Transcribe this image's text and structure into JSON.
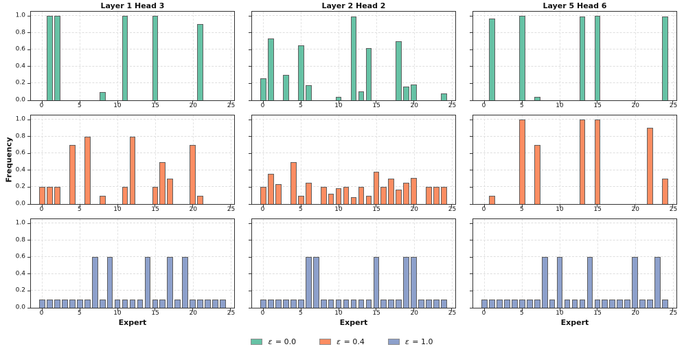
{
  "chart_data": {
    "type": "bar",
    "columns": [
      "Layer 1 Head 3",
      "Layer 2 Head 2",
      "Layer 5 Head 6"
    ],
    "xlabel": "Expert",
    "ylabel": "Frequency",
    "xticks": [
      0,
      5,
      10,
      15,
      20,
      25
    ],
    "yticks": [
      0.0,
      0.2,
      0.4,
      0.6,
      0.8,
      1.0
    ],
    "xlim": [
      -1.5,
      25.5
    ],
    "ylim": [
      0,
      1.05
    ],
    "grid": "dashed, both axes",
    "legend_position": "bottom center",
    "bar_width": 0.8,
    "bar_edge_color": "#5f5f5f",
    "series": [
      {
        "name": "ε = 0.0",
        "color": "#66c2a5",
        "per_column": [
          [
            [
              1,
              1.0
            ],
            [
              2,
              1.0
            ],
            [
              8,
              0.1
            ],
            [
              11,
              1.0
            ],
            [
              15,
              1.0
            ],
            [
              21,
              0.9
            ]
          ],
          [
            [
              0,
              0.26
            ],
            [
              1,
              0.73
            ],
            [
              3,
              0.3
            ],
            [
              5,
              0.65
            ],
            [
              6,
              0.18
            ],
            [
              10,
              0.04
            ],
            [
              12,
              0.99
            ],
            [
              13,
              0.11
            ],
            [
              14,
              0.62
            ],
            [
              18,
              0.7
            ],
            [
              19,
              0.16
            ],
            [
              20,
              0.19
            ],
            [
              24,
              0.08
            ]
          ],
          [
            [
              1,
              0.97
            ],
            [
              5,
              1.0
            ],
            [
              7,
              0.04
            ],
            [
              13,
              0.99
            ],
            [
              15,
              1.0
            ],
            [
              24,
              0.99
            ]
          ]
        ]
      },
      {
        "name": "ε = 0.4",
        "color": "#fc8d62",
        "per_column": [
          [
            [
              0,
              0.2
            ],
            [
              1,
              0.2
            ],
            [
              2,
              0.2
            ],
            [
              4,
              0.7
            ],
            [
              6,
              0.8
            ],
            [
              8,
              0.1
            ],
            [
              11,
              0.2
            ],
            [
              12,
              0.8
            ],
            [
              15,
              0.2
            ],
            [
              16,
              0.5
            ],
            [
              17,
              0.3
            ],
            [
              20,
              0.7
            ],
            [
              21,
              0.1
            ]
          ],
          [
            [
              0,
              0.2
            ],
            [
              1,
              0.36
            ],
            [
              2,
              0.24
            ],
            [
              4,
              0.5
            ],
            [
              5,
              0.1
            ],
            [
              6,
              0.25
            ],
            [
              8,
              0.2
            ],
            [
              9,
              0.12
            ],
            [
              10,
              0.19
            ],
            [
              11,
              0.2
            ],
            [
              12,
              0.08
            ],
            [
              13,
              0.2
            ],
            [
              14,
              0.1
            ],
            [
              15,
              0.38
            ],
            [
              16,
              0.2
            ],
            [
              17,
              0.3
            ],
            [
              18,
              0.17
            ],
            [
              19,
              0.25
            ],
            [
              20,
              0.31
            ],
            [
              22,
              0.2
            ],
            [
              23,
              0.2
            ],
            [
              24,
              0.2
            ]
          ],
          [
            [
              1,
              0.1
            ],
            [
              5,
              1.0
            ],
            [
              7,
              0.7
            ],
            [
              13,
              1.0
            ],
            [
              15,
              1.0
            ],
            [
              22,
              0.9
            ],
            [
              24,
              0.3
            ]
          ]
        ]
      },
      {
        "name": "ε = 1.0",
        "color": "#8da0cb",
        "per_column": [
          [
            [
              0,
              0.1
            ],
            [
              1,
              0.1
            ],
            [
              2,
              0.1
            ],
            [
              3,
              0.1
            ],
            [
              4,
              0.1
            ],
            [
              5,
              0.1
            ],
            [
              6,
              0.1
            ],
            [
              7,
              0.6
            ],
            [
              8,
              0.1
            ],
            [
              9,
              0.6
            ],
            [
              10,
              0.1
            ],
            [
              11,
              0.1
            ],
            [
              12,
              0.1
            ],
            [
              13,
              0.1
            ],
            [
              14,
              0.6
            ],
            [
              15,
              0.1
            ],
            [
              16,
              0.1
            ],
            [
              17,
              0.6
            ],
            [
              18,
              0.1
            ],
            [
              19,
              0.6
            ],
            [
              20,
              0.1
            ],
            [
              21,
              0.1
            ],
            [
              22,
              0.1
            ],
            [
              23,
              0.1
            ],
            [
              24,
              0.1
            ]
          ],
          [
            [
              0,
              0.1
            ],
            [
              1,
              0.1
            ],
            [
              2,
              0.1
            ],
            [
              3,
              0.1
            ],
            [
              4,
              0.1
            ],
            [
              5,
              0.1
            ],
            [
              6,
              0.6
            ],
            [
              7,
              0.6
            ],
            [
              8,
              0.1
            ],
            [
              9,
              0.1
            ],
            [
              10,
              0.1
            ],
            [
              11,
              0.1
            ],
            [
              12,
              0.1
            ],
            [
              13,
              0.1
            ],
            [
              14,
              0.1
            ],
            [
              15,
              0.6
            ],
            [
              16,
              0.1
            ],
            [
              17,
              0.1
            ],
            [
              18,
              0.1
            ],
            [
              19,
              0.6
            ],
            [
              20,
              0.6
            ],
            [
              21,
              0.1
            ],
            [
              22,
              0.1
            ],
            [
              23,
              0.1
            ],
            [
              24,
              0.1
            ]
          ],
          [
            [
              0,
              0.1
            ],
            [
              1,
              0.1
            ],
            [
              2,
              0.1
            ],
            [
              3,
              0.1
            ],
            [
              4,
              0.1
            ],
            [
              5,
              0.1
            ],
            [
              6,
              0.1
            ],
            [
              7,
              0.1
            ],
            [
              8,
              0.6
            ],
            [
              9,
              0.1
            ],
            [
              10,
              0.6
            ],
            [
              11,
              0.1
            ],
            [
              12,
              0.1
            ],
            [
              13,
              0.1
            ],
            [
              14,
              0.6
            ],
            [
              15,
              0.1
            ],
            [
              16,
              0.1
            ],
            [
              17,
              0.1
            ],
            [
              18,
              0.1
            ],
            [
              19,
              0.1
            ],
            [
              20,
              0.6
            ],
            [
              21,
              0.1
            ],
            [
              22,
              0.1
            ],
            [
              23,
              0.6
            ],
            [
              24,
              0.1
            ]
          ]
        ]
      }
    ]
  }
}
